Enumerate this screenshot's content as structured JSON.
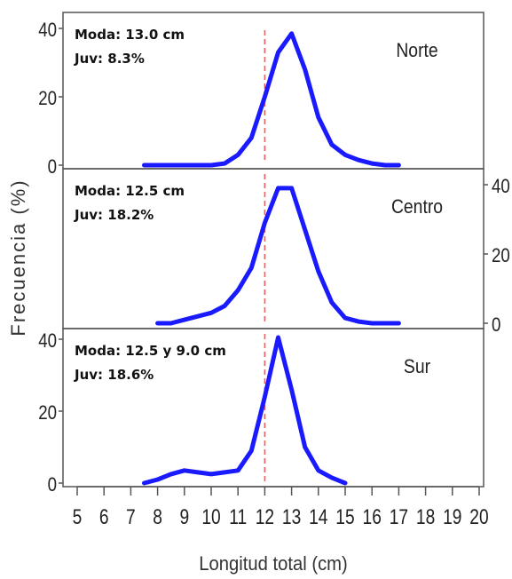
{
  "chart_data": {
    "type": "line",
    "xlabel": "Longitud total (cm)",
    "ylabel": "Frecuencia (%)",
    "xlim": [
      4.5,
      20.5
    ],
    "x_ticks": [
      5,
      6,
      7,
      8,
      9,
      10,
      11,
      12,
      13,
      14,
      15,
      16,
      17,
      18,
      19,
      20
    ],
    "x_tick_labels": [
      "5",
      "6",
      "7",
      "8",
      "9",
      "10",
      "11",
      "12",
      "13",
      "14",
      "15",
      "16",
      "17",
      "18",
      "19",
      "20"
    ],
    "reference_line_x": 12,
    "line_color": "#1a1aff",
    "reference_line_color": "#e06060",
    "panels": [
      {
        "name": "Norte",
        "annotation": [
          "Moda: 13.0 cm",
          "Juv: 8.3%"
        ],
        "y_axis_side": "left",
        "ylim": [
          0,
          42
        ],
        "y_ticks": [
          0,
          20,
          40
        ],
        "y_tick_labels": [
          "0",
          "20",
          "40"
        ],
        "x": [
          7.5,
          8,
          8.5,
          9,
          9.5,
          10,
          10.5,
          11,
          11.5,
          12,
          12.5,
          13,
          13.5,
          14,
          14.5,
          15,
          15.5,
          16,
          16.5,
          17
        ],
        "y": [
          0,
          0,
          0,
          0,
          0,
          0,
          0.5,
          3,
          8,
          20,
          33,
          38.5,
          28,
          14,
          6,
          3,
          1.5,
          0.5,
          0,
          0
        ]
      },
      {
        "name": "Centro",
        "annotation": [
          "Moda: 12.5 cm",
          "Juv: 18.2%"
        ],
        "y_axis_side": "right",
        "ylim": [
          0,
          42
        ],
        "y_ticks": [
          0,
          20,
          40
        ],
        "y_tick_labels": [
          "0",
          "20",
          "40"
        ],
        "x": [
          8,
          8.5,
          9,
          9.5,
          10,
          10.5,
          11,
          11.5,
          12,
          12.5,
          13,
          13.5,
          14,
          14.5,
          15,
          15.5,
          16,
          16.5,
          17
        ],
        "y": [
          0,
          0,
          1,
          2,
          3,
          5,
          9.5,
          16,
          29,
          39,
          39,
          27,
          15,
          6,
          1.5,
          0.5,
          0,
          0,
          0
        ]
      },
      {
        "name": "Sur",
        "annotation": [
          "Moda: 12.5 y 9.0 cm",
          "Juv: 18.6%"
        ],
        "y_axis_side": "left",
        "ylim": [
          0,
          42
        ],
        "y_ticks": [
          0,
          20,
          40
        ],
        "y_tick_labels": [
          "0",
          "20",
          "40"
        ],
        "x": [
          7.5,
          8,
          8.5,
          9,
          9.5,
          10,
          10.5,
          11,
          11.5,
          12,
          12.5,
          13,
          13.5,
          14,
          14.5,
          15
        ],
        "y": [
          0,
          1,
          2.5,
          3.5,
          3,
          2.5,
          3,
          3.5,
          9,
          24,
          40.5,
          26,
          10,
          3.5,
          1.5,
          0
        ]
      }
    ]
  }
}
